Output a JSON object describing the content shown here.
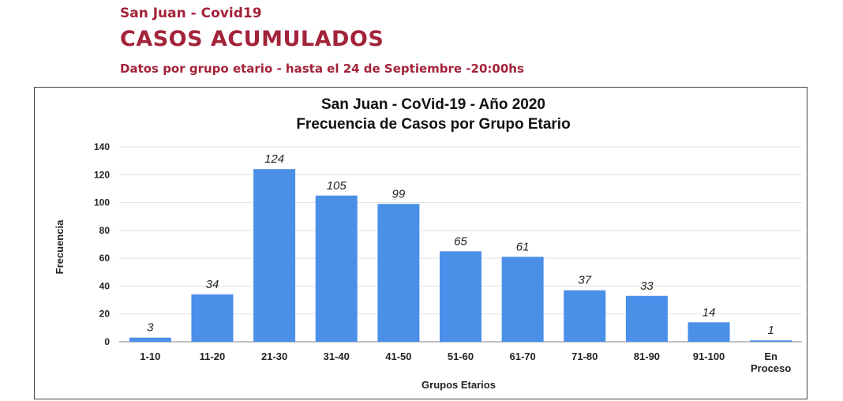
{
  "header": {
    "top_line": "San Juan - Covid19",
    "title": "CASOS ACUMULADOS",
    "subtitle": "Datos por grupo etario - hasta el 24 de Septiembre -20:00hs",
    "color": "#a3233a"
  },
  "chart_data": {
    "type": "bar",
    "title": "San Juan - CoVid-19 -  Año 2020",
    "subtitle": "Frecuencia de Casos por Grupo Etario",
    "xlabel": "Grupos Etarios",
    "ylabel": "Frecuencia",
    "categories": [
      "1-10",
      "11-20",
      "21-30",
      "31-40",
      "41-50",
      "51-60",
      "61-70",
      "71-80",
      "81-90",
      "91-100",
      "En Proceso"
    ],
    "values": [
      3,
      34,
      124,
      105,
      99,
      65,
      61,
      37,
      33,
      14,
      1
    ],
    "ylim": [
      0,
      140
    ],
    "yticks": [
      0,
      20,
      40,
      60,
      80,
      100,
      120,
      140
    ],
    "grid": true,
    "legend": "none",
    "bar_color": "#4a8fe8"
  }
}
